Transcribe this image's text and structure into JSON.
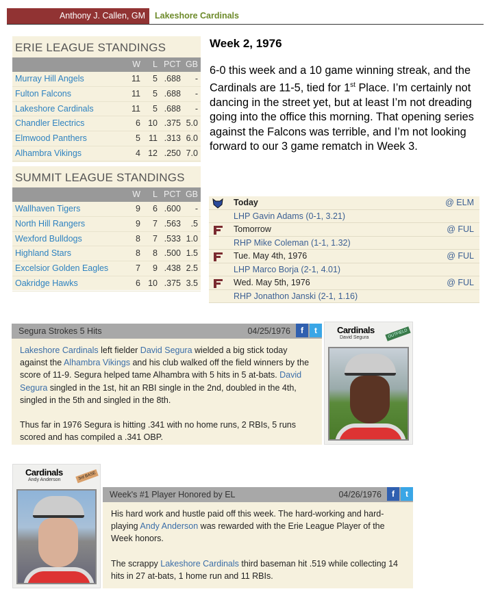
{
  "header": {
    "gm": "Anthony J. Callen, GM",
    "team": "Lakeshore Cardinals"
  },
  "erie": {
    "title": "ERIE LEAGUE STANDINGS",
    "cols": [
      "W",
      "L",
      "PCT",
      "GB"
    ],
    "rows": [
      [
        "Murray Hill Angels",
        "11",
        "5",
        ".688",
        "-"
      ],
      [
        "Fulton Falcons",
        "11",
        "5",
        ".688",
        "-"
      ],
      [
        "Lakeshore Cardinals",
        "11",
        "5",
        ".688",
        "-"
      ],
      [
        "Chandler Electrics",
        "6",
        "10",
        ".375",
        "5.0"
      ],
      [
        "Elmwood Panthers",
        "5",
        "11",
        ".313",
        "6.0"
      ],
      [
        "Alhambra Vikings",
        "4",
        "12",
        ".250",
        "7.0"
      ]
    ]
  },
  "summit": {
    "title": "SUMMIT LEAGUE STANDINGS",
    "cols": [
      "W",
      "L",
      "PCT",
      "GB"
    ],
    "rows": [
      [
        "Wallhaven Tigers",
        "9",
        "6",
        ".600",
        "-"
      ],
      [
        "North Hill Rangers",
        "9",
        "7",
        ".563",
        ".5"
      ],
      [
        "Wexford Bulldogs",
        "8",
        "7",
        ".533",
        "1.0"
      ],
      [
        "Highland Stars",
        "8",
        "8",
        ".500",
        "1.5"
      ],
      [
        "Excelsior Golden Eagles",
        "7",
        "9",
        ".438",
        "2.5"
      ],
      [
        "Oakridge Hawks",
        "6",
        "10",
        ".375",
        "3.5"
      ]
    ]
  },
  "week": {
    "title": "Week 2, 1976",
    "p1": "6-0 this week and a 10 game winning streak, and the Cardinals are 11-5, tied for 1",
    "sup": "st",
    "p2": " Place. I’m certainly not dancing in the street yet, but at least I’m not dreading going into the office this morning. That opening series against the Falcons was terrible, and I’m not looking forward to our 3 game rematch in Week 3."
  },
  "schedule": [
    {
      "day": "Today",
      "opp": "@ ELM",
      "pitcher": "LHP Gavin Adams (0-1, 3.21)",
      "logo": "panther-logo-icon",
      "color": "#2a4a9a"
    },
    {
      "day": "Tomorrow",
      "opp": "@ FUL",
      "pitcher": "RHP Mike Coleman (1-1, 1.32)",
      "logo": "falcons-f-logo-icon",
      "color": "#7a2a30"
    },
    {
      "day": "Tue. May 4th, 1976",
      "opp": "@ FUL",
      "pitcher": "LHP Marco Borja (2-1, 4.01)",
      "logo": "falcons-f-logo-icon",
      "color": "#7a2a30"
    },
    {
      "day": "Wed. May 5th, 1976",
      "opp": "@ FUL",
      "pitcher": "RHP Jonathon Janski (2-1, 1.16)",
      "logo": "falcons-f-logo-icon",
      "color": "#7a2a30"
    }
  ],
  "news1": {
    "title": "Segura Strokes 5 Hits",
    "date": "04/25/1976",
    "fb": "f",
    "tw": "t",
    "paras": [
      [
        {
          "t": "Lakeshore Cardinals",
          "l": 1
        },
        {
          "t": " left fielder "
        },
        {
          "t": "David Segura",
          "l": 1
        },
        {
          "t": " wielded a big stick today against the "
        },
        {
          "t": "Alhambra Vikings",
          "l": 1
        },
        {
          "t": " and his club walked off the field winners by the score of 11-9. Segura helped tame Alhambra with 5 hits in 5 at-bats. "
        },
        {
          "t": "David Segura",
          "l": 1
        },
        {
          "t": " singled in the 1st, hit an RBI single in the 2nd, doubled in the 4th, singled in the 5th and singled in the 8th."
        }
      ],
      [
        {
          "t": "Thus far in 1976 Segura is hitting .341 with no home runs, 2 RBIs, 5 runs scored and has compiled a .341 OBP."
        }
      ]
    ],
    "card": {
      "team": "Cardinals",
      "name": "David Segura",
      "pos": "OUTFIELD",
      "pos_color": "#3a7a4a"
    }
  },
  "news2": {
    "title": "Week's #1 Player Honored by EL",
    "date": "04/26/1976",
    "fb": "f",
    "tw": "t",
    "paras": [
      [
        {
          "t": "His hard work and hustle paid off this week. The hard-working and hard-playing "
        },
        {
          "t": "Andy Anderson",
          "l": 1
        },
        {
          "t": " was rewarded with the Erie League Player of the Week honors."
        }
      ],
      [
        {
          "t": "The scrappy "
        },
        {
          "t": "Lakeshore Cardinals",
          "l": 1
        },
        {
          "t": " third baseman hit .519 while collecting 14 hits in 27 at-bats, 1 home run and 11 RBIs."
        }
      ]
    ],
    "card": {
      "team": "Cardinals",
      "name": "Andy Anderson",
      "pos": "3rd BASE",
      "pos_color": "#d9a06a"
    }
  }
}
